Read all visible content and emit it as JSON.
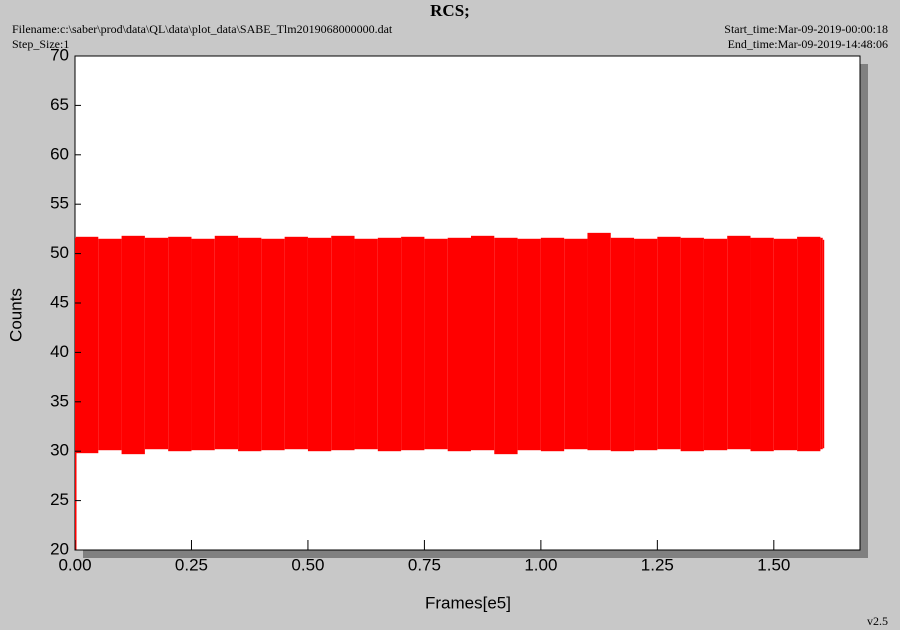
{
  "header": {
    "title": "RCS;",
    "filename": "Filename:c:\\saber\\prod\\data\\QL\\data\\plot_data\\SABE_Tlm2019068000000.dat",
    "step_size": "Step_Size:1",
    "start_time": "Start_time:Mar-09-2019-00:00:18",
    "end_time": "End_time:Mar-09-2019-14:48:06"
  },
  "version": "v2.5",
  "chart_data": {
    "type": "range",
    "color": "#ff0000",
    "x_label": "Frames[e5]",
    "y_label": "Counts",
    "x": [
      0,
      0.002,
      0.05,
      0.1,
      0.15,
      0.2,
      0.25,
      0.3,
      0.35,
      0.4,
      0.45,
      0.5,
      0.55,
      0.6,
      0.65,
      0.7,
      0.75,
      0.8,
      0.85,
      0.9,
      0.95,
      1.0,
      1.05,
      1.1,
      1.15,
      1.2,
      1.25,
      1.3,
      1.35,
      1.4,
      1.45,
      1.5,
      1.55,
      1.6,
      1.605
    ],
    "low": [
      20,
      29.8,
      30.1,
      29.7,
      30.2,
      30.0,
      30.1,
      30.2,
      30.0,
      30.1,
      30.2,
      30.0,
      30.1,
      30.2,
      30.0,
      30.1,
      30.2,
      30.0,
      30.1,
      29.7,
      30.1,
      30.0,
      30.2,
      30.1,
      30.0,
      30.1,
      30.2,
      30.0,
      30.1,
      30.2,
      30.0,
      30.1,
      30.0,
      30.2,
      30.3
    ],
    "high": [
      51.6,
      51.7,
      51.5,
      51.8,
      51.6,
      51.7,
      51.5,
      51.8,
      51.6,
      51.5,
      51.7,
      51.6,
      51.8,
      51.5,
      51.6,
      51.7,
      51.5,
      51.6,
      51.8,
      51.6,
      51.5,
      51.6,
      51.5,
      52.1,
      51.6,
      51.5,
      51.7,
      51.6,
      51.5,
      51.8,
      51.6,
      51.5,
      51.7,
      51.6,
      51.4
    ],
    "xlim": [
      0,
      1.685
    ],
    "ylim": [
      20,
      70
    ],
    "xticks": [
      {
        "value": 0,
        "label": "0.00"
      },
      {
        "value": 0.25,
        "label": "0.25"
      },
      {
        "value": 0.5,
        "label": "0.50"
      },
      {
        "value": 0.75,
        "label": "0.75"
      },
      {
        "value": 1,
        "label": "1.00"
      },
      {
        "value": 1.25,
        "label": "1.25"
      },
      {
        "value": 1.5,
        "label": "1.50"
      }
    ],
    "yticks": [
      20,
      25,
      30,
      35,
      40,
      45,
      50,
      55,
      60,
      65,
      70
    ]
  }
}
